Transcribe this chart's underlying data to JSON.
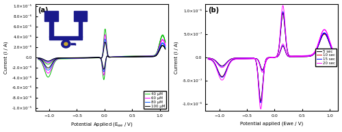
{
  "panel_a": {
    "label": "(a)",
    "xlabel": "Potential Applied (E$_{we}$ / V)",
    "ylabel": "Current (I / A)",
    "xlim": [
      -1.25,
      1.15
    ],
    "ylim": [
      -1.05e-05,
      1.05e-05
    ],
    "yticks": [
      -1e-05,
      -8e-06,
      -6e-06,
      -4e-06,
      -2e-06,
      0.0,
      2e-06,
      4e-06,
      6e-06,
      8e-06,
      1e-05
    ],
    "ytick_labels": [
      "-1.0×10⁻⁵",
      "-8.0×10⁻⁶",
      "-6.0×10⁻⁶",
      "-4.0×10⁻⁶",
      "-2.0×10⁻⁶",
      "0.0",
      "2.0×10⁻⁶",
      "4.0×10⁻⁶",
      "6.0×10⁻⁶",
      "8.0×10⁻⁶",
      "1.0×10⁻⁵"
    ],
    "xticks": [
      -1.0,
      -0.5,
      0.0,
      0.5,
      1.0
    ],
    "legend_labels": [
      "40 μM",
      "60 μM",
      "80 μM",
      "100 μM"
    ],
    "legend_colors": [
      "#00bb00",
      "#ff00ff",
      "#0055ff",
      "#000000"
    ],
    "scales": [
      6.5e-06,
      5.2e-06,
      4.2e-06,
      3.5e-06
    ]
  },
  "panel_b": {
    "label": "(b)",
    "xlabel": "Potential applied (Ewe / V)",
    "ylabel": "Current (I / A)",
    "xlim": [
      -1.25,
      1.15
    ],
    "ylim": [
      -1.15e-06,
      1.15e-06
    ],
    "yticks": [
      -1e-06,
      -5e-07,
      0.0,
      5e-07,
      1e-06
    ],
    "ytick_labels": [
      "-1.0×10⁻⁶",
      "-5.0×10⁻⁷",
      "0.0",
      "5.0×10⁻⁷",
      "1.0×10⁻⁶"
    ],
    "xticks": [
      -1.0,
      -0.5,
      0.0,
      0.5,
      1.0
    ],
    "legend_labels": [
      "5 sec",
      "10 sec",
      "15 sec",
      "20 sec"
    ],
    "legend_colors": [
      "#000000",
      "#cc0000",
      "#0000ff",
      "#ff00ff"
    ],
    "scales": [
      8.5e-07,
      8.5e-07,
      8.8e-07,
      1e-06
    ]
  },
  "inset_bg": "#c8a832",
  "inset_fg": "#1a1a8c",
  "bg": "#ffffff"
}
